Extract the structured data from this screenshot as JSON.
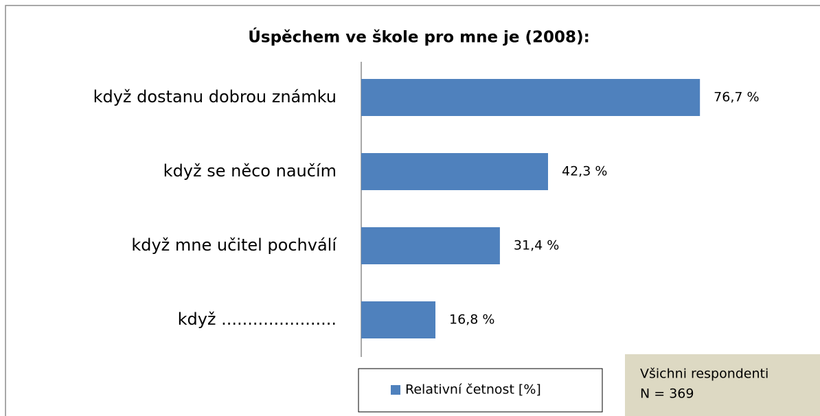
{
  "chart_data": {
    "type": "bar",
    "orientation": "horizontal",
    "title": "Úspěchem ve škole pro mne je (2008):",
    "categories": [
      "když dostanu dobrou známku",
      "když se něco naučím",
      "když mne učitel pochválí",
      "když ......................"
    ],
    "series": [
      {
        "name": "Relativní četnost [%]",
        "color": "#4f81bd",
        "values": [
          76.7,
          42.3,
          31.4,
          16.8
        ],
        "value_labels": [
          "76,7 %",
          "42,3 %",
          "31,4 %",
          "16,8 %"
        ]
      }
    ],
    "xlim": [
      0,
      90
    ],
    "legend": "bottom",
    "annotation": [
      "Všichni respondenti",
      "N = 369"
    ]
  }
}
